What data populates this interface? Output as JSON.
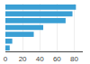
{
  "chart_data": {
    "type": "bar",
    "orientation": "horizontal",
    "values": [
      82,
      78,
      70,
      44,
      33,
      8,
      5
    ],
    "color": "#3a9fd4",
    "xlim": [
      0,
      90
    ],
    "xticks": [
      0,
      20,
      40,
      60,
      80
    ],
    "grid": true,
    "tick_labels": "x"
  }
}
